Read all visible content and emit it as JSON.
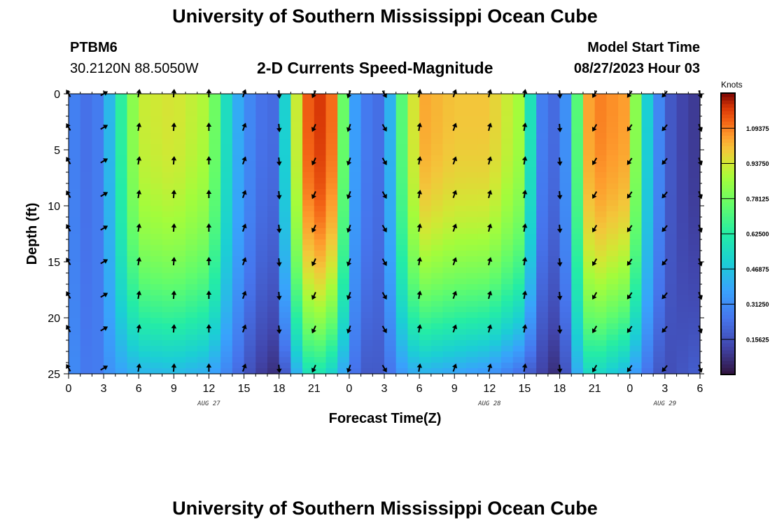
{
  "page": {
    "title": "University of Southern Mississippi Ocean Cube",
    "station": "PTBM6",
    "coords": "30.2120N  88.5050W",
    "subtitle": "2-D Currents Speed-Magnitude",
    "model_start_label": "Model Start Time",
    "model_start_value": "08/27/2023 Hour 03",
    "bottom_title": "University of Southern Mississippi Ocean Cube"
  },
  "chart_data": {
    "type": "heatmap",
    "title": "2-D Currents Speed-Magnitude",
    "xlabel": "Forecast Time(Z)",
    "ylabel": "Depth (ft)",
    "x_tick_labels": [
      "0",
      "3",
      "6",
      "9",
      "12",
      "15",
      "18",
      "21",
      "0",
      "3",
      "6",
      "9",
      "12",
      "15",
      "18",
      "21",
      "0",
      "3",
      "6"
    ],
    "x_range_hours": [
      0,
      54
    ],
    "date_labels": [
      {
        "text": "AUG 27",
        "hour": 12
      },
      {
        "text": "AUG 28",
        "hour": 36
      },
      {
        "text": "AUG 29",
        "hour": 51
      }
    ],
    "y_ticks": [
      0,
      5,
      10,
      15,
      20,
      25
    ],
    "ylim": [
      0,
      25
    ],
    "colorbar": {
      "units": "Knots",
      "range": [
        0,
        1.25
      ],
      "tick_labels": [
        "1.09375",
        "0.93750",
        "0.78125",
        "0.62500",
        "0.46875",
        "0.31250",
        "0.15625"
      ],
      "tick_values": [
        1.09375,
        0.9375,
        0.78125,
        0.625,
        0.46875,
        0.3125,
        0.15625
      ],
      "colormap": "turbo"
    },
    "speed_hourly_anchors": [
      {
        "hour": 0,
        "surface": 0.3,
        "bottom": 0.33
      },
      {
        "hour": 2,
        "surface": 0.22,
        "bottom": 0.24
      },
      {
        "hour": 3,
        "surface": 0.32,
        "bottom": 0.3
      },
      {
        "hour": 4,
        "surface": 0.55,
        "bottom": 0.36
      },
      {
        "hour": 6,
        "surface": 0.92,
        "bottom": 0.42
      },
      {
        "hour": 9,
        "surface": 0.95,
        "bottom": 0.44
      },
      {
        "hour": 12,
        "surface": 0.88,
        "bottom": 0.4
      },
      {
        "hour": 14,
        "surface": 0.45,
        "bottom": 0.26
      },
      {
        "hour": 16,
        "surface": 0.25,
        "bottom": 0.12
      },
      {
        "hour": 18,
        "surface": 0.22,
        "bottom": 0.06
      },
      {
        "hour": 19,
        "surface": 0.8,
        "bottom": 0.3
      },
      {
        "hour": 20,
        "surface": 1.05,
        "bottom": 0.52
      },
      {
        "hour": 21,
        "surface": 1.22,
        "bottom": 0.62
      },
      {
        "hour": 23,
        "surface": 1.08,
        "bottom": 0.48
      },
      {
        "hour": 24,
        "surface": 0.45,
        "bottom": 0.3
      },
      {
        "hour": 25,
        "surface": 0.28,
        "bottom": 0.18
      },
      {
        "hour": 27,
        "surface": 0.22,
        "bottom": 0.18
      },
      {
        "hour": 28,
        "surface": 0.62,
        "bottom": 0.32
      },
      {
        "hour": 30,
        "surface": 1.05,
        "bottom": 0.42
      },
      {
        "hour": 33,
        "surface": 1.0,
        "bottom": 0.38
      },
      {
        "hour": 36,
        "surface": 1.0,
        "bottom": 0.34
      },
      {
        "hour": 39,
        "surface": 0.85,
        "bottom": 0.22
      },
      {
        "hour": 40,
        "surface": 0.3,
        "bottom": 0.14
      },
      {
        "hour": 42,
        "surface": 0.2,
        "bottom": 0.05
      },
      {
        "hour": 43,
        "surface": 0.45,
        "bottom": 0.28
      },
      {
        "hour": 44,
        "surface": 1.0,
        "bottom": 0.52
      },
      {
        "hour": 45,
        "surface": 1.1,
        "bottom": 0.55
      },
      {
        "hour": 48,
        "surface": 1.05,
        "bottom": 0.42
      },
      {
        "hour": 49,
        "surface": 0.6,
        "bottom": 0.28
      },
      {
        "hour": 51,
        "surface": 0.2,
        "bottom": 0.14
      },
      {
        "hour": 53,
        "surface": 0.1,
        "bottom": 0.18
      },
      {
        "hour": 54,
        "surface": 0.1,
        "bottom": 0.2
      }
    ],
    "vector_depths_ft": [
      0,
      3,
      6,
      9,
      12,
      15,
      18,
      21,
      24.5
    ],
    "vector_columns": [
      {
        "hour": 0,
        "angle_deg": -30
      },
      {
        "hour": 3,
        "angle_deg": 60
      },
      {
        "hour": 6,
        "angle_deg": 10
      },
      {
        "hour": 9,
        "angle_deg": 5
      },
      {
        "hour": 12,
        "angle_deg": 0
      },
      {
        "hour": 15,
        "angle_deg": 20
      },
      {
        "hour": 18,
        "angle_deg": 175
      },
      {
        "hour": 21,
        "angle_deg": 205
      },
      {
        "hour": 24,
        "angle_deg": 200
      },
      {
        "hour": 27,
        "angle_deg": 150
      },
      {
        "hour": 30,
        "angle_deg": 10
      },
      {
        "hour": 33,
        "angle_deg": 20
      },
      {
        "hour": 36,
        "angle_deg": 15
      },
      {
        "hour": 39,
        "angle_deg": 10
      },
      {
        "hour": 42,
        "angle_deg": 175
      },
      {
        "hour": 45,
        "angle_deg": 210
      },
      {
        "hour": 48,
        "angle_deg": 215
      },
      {
        "hour": 51,
        "angle_deg": 220
      },
      {
        "hour": 54,
        "angle_deg": 160
      }
    ]
  }
}
